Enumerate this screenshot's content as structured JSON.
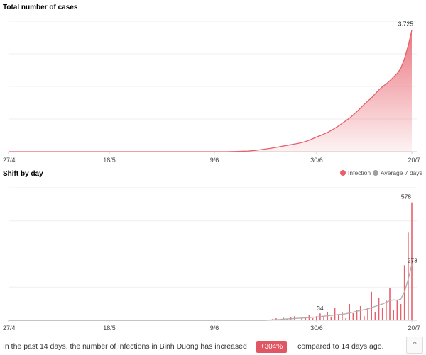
{
  "chart_data": [
    {
      "type": "area",
      "title": "Total number of cases",
      "x_ticks": [
        "27/4",
        "18/5",
        "9/6",
        "30/6",
        "20/7"
      ],
      "dates_start": "27/4",
      "dates_end": "20/7",
      "values": [
        0,
        0,
        0,
        0,
        0,
        0,
        0,
        0,
        0,
        0,
        0,
        0,
        0,
        0,
        0,
        0,
        0,
        0,
        0,
        0,
        0,
        0,
        0,
        0,
        0,
        0,
        0,
        0,
        0,
        0,
        0,
        0,
        0,
        0,
        0,
        0,
        0,
        0,
        0,
        0,
        0,
        0,
        0,
        0,
        0,
        0,
        0,
        0,
        0,
        0,
        0,
        0,
        0,
        0,
        0,
        0,
        0,
        0,
        0,
        0,
        0,
        3,
        5,
        8,
        12,
        15,
        20,
        30,
        40,
        55,
        70,
        85,
        100,
        120,
        140,
        160,
        180,
        200,
        220,
        240,
        260,
        290,
        320,
        360,
        410,
        460,
        500,
        550,
        600,
        660,
        730,
        800,
        880,
        960,
        1040,
        1140,
        1240,
        1350,
        1460,
        1560,
        1660,
        1780,
        1900,
        2000,
        2080,
        2180,
        2290,
        2400,
        2560,
        2860,
        3250,
        3725
      ],
      "annotations": [
        {
          "label": "3.725"
        }
      ],
      "ylim": [
        0,
        4000
      ],
      "grid": true,
      "color": "#e8606b"
    },
    {
      "type": "bar",
      "title": "Shift by day",
      "x_ticks": [
        "27/4",
        "18/5",
        "9/6",
        "30/6",
        "20/7"
      ],
      "dates_start": "27/4",
      "dates_end": "20/7",
      "series": [
        {
          "name": "Infection",
          "color": "#e8606b",
          "values": [
            0,
            0,
            0,
            0,
            0,
            0,
            0,
            0,
            0,
            0,
            0,
            0,
            0,
            0,
            0,
            0,
            0,
            0,
            0,
            0,
            0,
            0,
            0,
            0,
            0,
            0,
            0,
            0,
            0,
            0,
            0,
            0,
            0,
            0,
            0,
            0,
            0,
            0,
            0,
            0,
            0,
            0,
            0,
            0,
            0,
            0,
            0,
            0,
            0,
            0,
            0,
            0,
            0,
            0,
            0,
            0,
            0,
            0,
            0,
            0,
            0,
            0,
            0,
            0,
            0,
            0,
            0,
            0,
            0,
            0,
            0,
            3,
            6,
            10,
            5,
            12,
            8,
            15,
            20,
            0,
            10,
            15,
            25,
            10,
            20,
            34,
            15,
            40,
            18,
            60,
            30,
            40,
            10,
            80,
            35,
            50,
            70,
            20,
            60,
            140,
            40,
            110,
            60,
            100,
            160,
            50,
            100,
            80,
            270,
            430,
            578
          ]
        },
        {
          "name": "Average 7 days",
          "color": "#b0b0b0",
          "values": [
            0,
            0,
            0,
            0,
            0,
            0,
            0,
            0,
            0,
            0,
            0,
            0,
            0,
            0,
            0,
            0,
            0,
            0,
            0,
            0,
            0,
            0,
            0,
            0,
            0,
            0,
            0,
            0,
            0,
            0,
            0,
            0,
            0,
            0,
            0,
            0,
            0,
            0,
            0,
            0,
            0,
            0,
            0,
            0,
            0,
            0,
            0,
            0,
            0,
            0,
            0,
            0,
            0,
            0,
            0,
            0,
            0,
            0,
            0,
            0,
            0,
            0,
            0,
            0,
            0,
            0,
            0,
            0,
            0,
            0,
            0,
            1,
            2,
            3,
            4,
            6,
            7,
            8,
            9,
            10,
            11,
            12,
            14,
            15,
            16,
            18,
            20,
            22,
            24,
            26,
            28,
            30,
            32,
            36,
            40,
            44,
            48,
            52,
            56,
            62,
            68,
            74,
            80,
            88,
            96,
            100,
            98,
            104,
            140,
            200,
            273
          ]
        }
      ],
      "annotations": [
        {
          "label": "578"
        },
        {
          "label": "273"
        },
        {
          "label": "34"
        }
      ],
      "ylim": [
        0,
        650
      ],
      "grid": true,
      "legend": "top-right"
    }
  ],
  "footer": {
    "text_before": "In the past 14 days, the number of infections in Binh Duong has increased",
    "badge": "+304%",
    "text_after": "compared to 14 days ago."
  },
  "scroll_icon": "chevron-up-icon"
}
